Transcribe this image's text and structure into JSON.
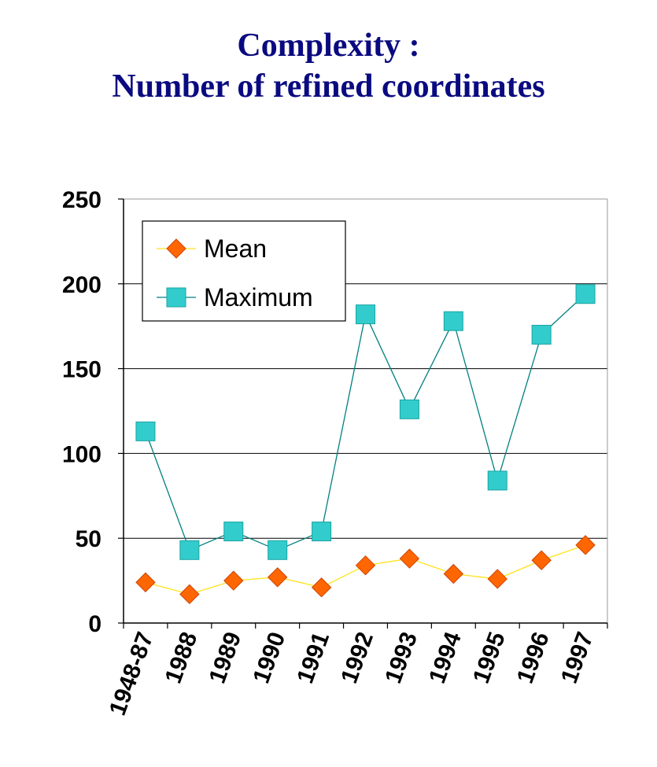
{
  "title_line1": "Complexity :",
  "title_line2": "Number of refined coordinates",
  "chart_data": {
    "type": "line",
    "categories": [
      "1948-87",
      "1988",
      "1989",
      "1990",
      "1991",
      "1992",
      "1993",
      "1994",
      "1995",
      "1996",
      "1997"
    ],
    "series": [
      {
        "name": "Mean",
        "values": [
          24,
          17,
          25,
          27,
          21,
          34,
          38,
          29,
          26,
          37,
          46
        ],
        "color": "#ff6600",
        "line_color": "#ffe21a",
        "marker": "diamond"
      },
      {
        "name": "Maximum",
        "values": [
          113,
          43,
          54,
          43,
          54,
          182,
          126,
          178,
          84,
          170,
          194
        ],
        "color": "#33cccc",
        "line_color": "#008080",
        "marker": "square"
      }
    ],
    "ylim": [
      0,
      250
    ],
    "yticks": [
      0,
      50,
      100,
      150,
      200,
      250
    ],
    "grid": true,
    "legend_position": "top-left",
    "xlabel": "",
    "ylabel": ""
  }
}
